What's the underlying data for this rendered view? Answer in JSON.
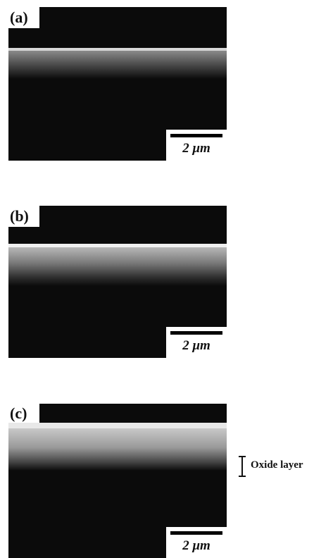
{
  "panels": [
    {
      "label": "(a)",
      "scale_bar": "2 μm"
    },
    {
      "label": "(b)",
      "scale_bar": "2 μm"
    },
    {
      "label": "(c)",
      "scale_bar": "2 μm"
    }
  ],
  "annotation": "Oxide layer"
}
